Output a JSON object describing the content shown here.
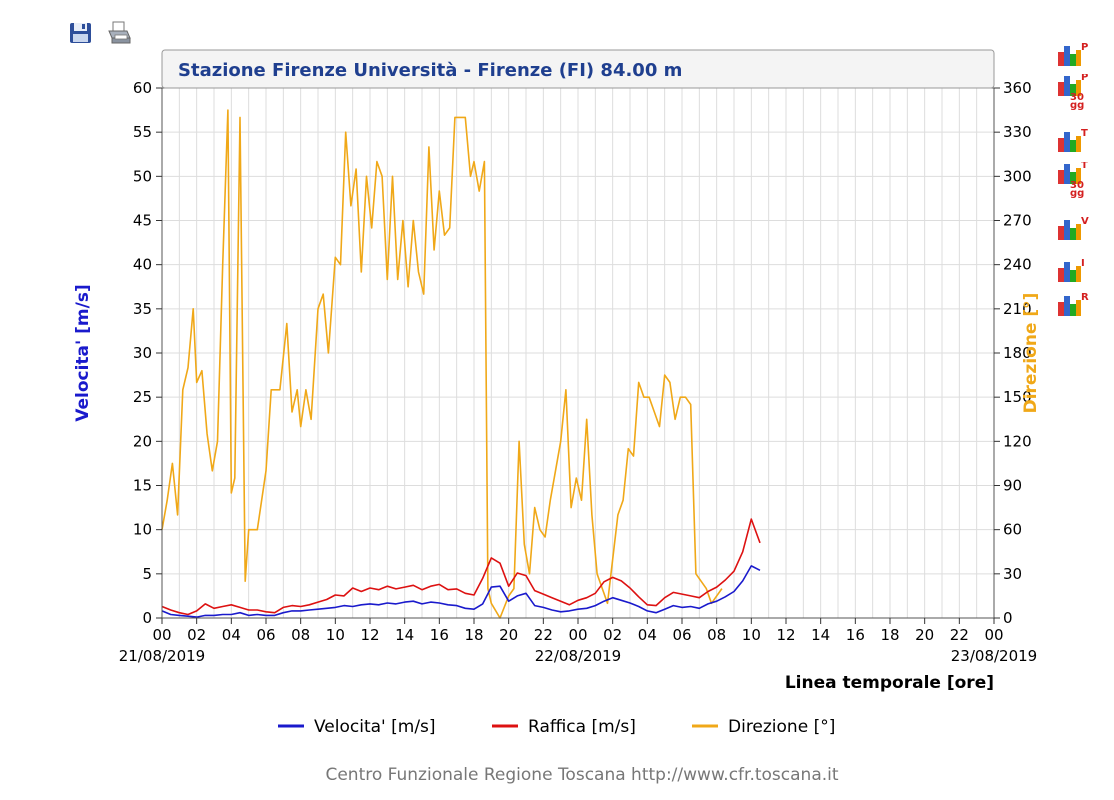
{
  "toolbar": {
    "save_icon": "floppy-disk-icon",
    "print_icon": "printer-icon"
  },
  "side_icons": [
    {
      "icon": "bar-chart-icon",
      "letter": "P",
      "sub": ""
    },
    {
      "icon": "bar-chart-icon",
      "letter": "P",
      "sub": "30\ngg"
    },
    {
      "icon": "bar-chart-icon",
      "letter": "T",
      "sub": ""
    },
    {
      "icon": "bar-chart-icon",
      "letter": "T",
      "sub": "30\ngg"
    },
    {
      "icon": "bar-chart-icon",
      "letter": "V",
      "sub": ""
    },
    {
      "icon": "bar-chart-icon",
      "letter": "I",
      "sub": ""
    },
    {
      "icon": "bar-chart-icon",
      "letter": "R",
      "sub": ""
    }
  ],
  "chart_data": {
    "type": "line",
    "title": "Stazione Firenze Università - Firenze (FI) 84.00 m",
    "xlabel": "Linea temporale [ore]",
    "ylabel_left": "Velocita' [m/s]",
    "ylabel_right": "Direzione [°]",
    "ylim_left": [
      0,
      60
    ],
    "ylim_right": [
      0,
      360
    ],
    "y_ticks_left": [
      "0",
      "5",
      "10",
      "15",
      "20",
      "25",
      "30",
      "35",
      "40",
      "45",
      "50",
      "55",
      "60"
    ],
    "y_ticks_right": [
      "0",
      "30",
      "60",
      "90",
      "120",
      "150",
      "180",
      "210",
      "240",
      "270",
      "300",
      "330",
      "360"
    ],
    "x_range_hours": [
      0,
      48
    ],
    "x_tick_labels": [
      "00",
      "02",
      "04",
      "06",
      "08",
      "10",
      "12",
      "14",
      "16",
      "18",
      "20",
      "22",
      "00",
      "02",
      "04",
      "06",
      "08",
      "10",
      "12",
      "14",
      "16",
      "18",
      "20",
      "22",
      "00"
    ],
    "date_labels": [
      {
        "hour": 0,
        "text": "21/08/2019"
      },
      {
        "hour": 24,
        "text": "22/08/2019"
      },
      {
        "hour": 48,
        "text": "23/08/2019"
      }
    ],
    "grid": true,
    "legend_position": "bottom",
    "footer": "Centro Funzionale Regione Toscana http://www.cfr.toscana.it",
    "series": [
      {
        "name": "Velocita' [m/s]",
        "axis": "left",
        "color": "#1a1acc",
        "points": [
          [
            0,
            0.8
          ],
          [
            0.5,
            0.4
          ],
          [
            1,
            0.3
          ],
          [
            1.5,
            0.2
          ],
          [
            2,
            0.1
          ],
          [
            2.5,
            0.3
          ],
          [
            3,
            0.3
          ],
          [
            3.5,
            0.4
          ],
          [
            4,
            0.4
          ],
          [
            4.5,
            0.6
          ],
          [
            5,
            0.3
          ],
          [
            5.5,
            0.4
          ],
          [
            6,
            0.3
          ],
          [
            6.5,
            0.3
          ],
          [
            7,
            0.6
          ],
          [
            7.5,
            0.8
          ],
          [
            8,
            0.8
          ],
          [
            8.5,
            0.9
          ],
          [
            9,
            1.0
          ],
          [
            9.5,
            1.1
          ],
          [
            10,
            1.2
          ],
          [
            10.5,
            1.4
          ],
          [
            11,
            1.3
          ],
          [
            11.5,
            1.5
          ],
          [
            12,
            1.6
          ],
          [
            12.5,
            1.5
          ],
          [
            13,
            1.7
          ],
          [
            13.5,
            1.6
          ],
          [
            14,
            1.8
          ],
          [
            14.5,
            1.9
          ],
          [
            15,
            1.6
          ],
          [
            15.5,
            1.8
          ],
          [
            16,
            1.7
          ],
          [
            16.5,
            1.5
          ],
          [
            17,
            1.4
          ],
          [
            17.5,
            1.1
          ],
          [
            18,
            1.0
          ],
          [
            18.5,
            1.6
          ],
          [
            19,
            3.5
          ],
          [
            19.5,
            3.6
          ],
          [
            20,
            1.9
          ],
          [
            20.5,
            2.5
          ],
          [
            21,
            2.8
          ],
          [
            21.5,
            1.4
          ],
          [
            22,
            1.2
          ],
          [
            22.5,
            0.9
          ],
          [
            23,
            0.7
          ],
          [
            23.5,
            0.8
          ],
          [
            24,
            1.0
          ],
          [
            24.5,
            1.1
          ],
          [
            25,
            1.4
          ],
          [
            25.5,
            1.9
          ],
          [
            26,
            2.3
          ],
          [
            26.5,
            2.0
          ],
          [
            27,
            1.7
          ],
          [
            27.5,
            1.3
          ],
          [
            28,
            0.8
          ],
          [
            28.5,
            0.6
          ],
          [
            29,
            1.0
          ],
          [
            29.5,
            1.4
          ],
          [
            30,
            1.2
          ],
          [
            30.5,
            1.3
          ],
          [
            31,
            1.1
          ],
          [
            31.5,
            1.6
          ],
          [
            32,
            1.9
          ],
          [
            32.5,
            2.4
          ],
          [
            33,
            3.0
          ],
          [
            33.5,
            4.2
          ],
          [
            34,
            5.9
          ],
          [
            34.5,
            5.4
          ]
        ]
      },
      {
        "name": "Raffica [m/s]",
        "axis": "left",
        "color": "#dd1111",
        "points": [
          [
            0,
            1.3
          ],
          [
            0.5,
            0.9
          ],
          [
            1,
            0.6
          ],
          [
            1.5,
            0.4
          ],
          [
            2,
            0.8
          ],
          [
            2.5,
            1.6
          ],
          [
            3,
            1.1
          ],
          [
            3.5,
            1.3
          ],
          [
            4,
            1.5
          ],
          [
            4.5,
            1.2
          ],
          [
            5,
            0.9
          ],
          [
            5.5,
            0.9
          ],
          [
            6,
            0.7
          ],
          [
            6.5,
            0.6
          ],
          [
            7,
            1.2
          ],
          [
            7.5,
            1.4
          ],
          [
            8,
            1.3
          ],
          [
            8.5,
            1.5
          ],
          [
            9,
            1.8
          ],
          [
            9.5,
            2.1
          ],
          [
            10,
            2.6
          ],
          [
            10.5,
            2.5
          ],
          [
            11,
            3.4
          ],
          [
            11.5,
            3.0
          ],
          [
            12,
            3.4
          ],
          [
            12.5,
            3.2
          ],
          [
            13,
            3.6
          ],
          [
            13.5,
            3.3
          ],
          [
            14,
            3.5
          ],
          [
            14.5,
            3.7
          ],
          [
            15,
            3.2
          ],
          [
            15.5,
            3.6
          ],
          [
            16,
            3.8
          ],
          [
            16.5,
            3.2
          ],
          [
            17,
            3.3
          ],
          [
            17.5,
            2.8
          ],
          [
            18,
            2.6
          ],
          [
            18.5,
            4.5
          ],
          [
            19,
            6.8
          ],
          [
            19.5,
            6.2
          ],
          [
            20,
            3.6
          ],
          [
            20.5,
            5.1
          ],
          [
            21,
            4.8
          ],
          [
            21.5,
            3.1
          ],
          [
            22,
            2.7
          ],
          [
            22.5,
            2.3
          ],
          [
            23,
            1.9
          ],
          [
            23.5,
            1.5
          ],
          [
            24,
            2.0
          ],
          [
            24.5,
            2.3
          ],
          [
            25,
            2.8
          ],
          [
            25.5,
            4.1
          ],
          [
            26,
            4.6
          ],
          [
            26.5,
            4.2
          ],
          [
            27,
            3.4
          ],
          [
            27.5,
            2.4
          ],
          [
            28,
            1.5
          ],
          [
            28.5,
            1.4
          ],
          [
            29,
            2.3
          ],
          [
            29.5,
            2.9
          ],
          [
            30,
            2.7
          ],
          [
            30.5,
            2.5
          ],
          [
            31,
            2.3
          ],
          [
            31.5,
            3.0
          ],
          [
            32,
            3.5
          ],
          [
            32.5,
            4.3
          ],
          [
            33,
            5.3
          ],
          [
            33.5,
            7.5
          ],
          [
            34,
            11.2
          ],
          [
            34.5,
            8.5
          ]
        ]
      },
      {
        "name": "Direzione [°]",
        "axis": "right",
        "color": "#f0a818",
        "points": [
          [
            0,
            60
          ],
          [
            0.3,
            80
          ],
          [
            0.6,
            105
          ],
          [
            0.9,
            70
          ],
          [
            1.2,
            155
          ],
          [
            1.5,
            170
          ],
          [
            1.8,
            210
          ],
          [
            2.0,
            160
          ],
          [
            2.3,
            168
          ],
          [
            2.6,
            125
          ],
          [
            2.9,
            100
          ],
          [
            3.2,
            120
          ],
          [
            3.5,
            240
          ],
          [
            3.8,
            345
          ],
          [
            4.0,
            85
          ],
          [
            4.2,
            95
          ],
          [
            4.5,
            340
          ],
          [
            4.8,
            25
          ],
          [
            5.0,
            60
          ],
          [
            5.5,
            60
          ],
          [
            6,
            100
          ],
          [
            6.3,
            155
          ],
          [
            6.8,
            155
          ],
          [
            7.2,
            200
          ],
          [
            7.5,
            140
          ],
          [
            7.8,
            155
          ],
          [
            8.0,
            130
          ],
          [
            8.3,
            155
          ],
          [
            8.6,
            135
          ],
          [
            9.0,
            210
          ],
          [
            9.3,
            220
          ],
          [
            9.6,
            180
          ],
          [
            10.0,
            245
          ],
          [
            10.3,
            240
          ],
          [
            10.6,
            330
          ],
          [
            10.9,
            280
          ],
          [
            11.2,
            305
          ],
          [
            11.5,
            235
          ],
          [
            11.8,
            300
          ],
          [
            12.1,
            265
          ],
          [
            12.4,
            310
          ],
          [
            12.7,
            300
          ],
          [
            13.0,
            230
          ],
          [
            13.3,
            300
          ],
          [
            13.6,
            230
          ],
          [
            13.9,
            270
          ],
          [
            14.2,
            225
          ],
          [
            14.5,
            270
          ],
          [
            14.8,
            235
          ],
          [
            15.1,
            220
          ],
          [
            15.4,
            320
          ],
          [
            15.7,
            250
          ],
          [
            16.0,
            290
          ],
          [
            16.3,
            260
          ],
          [
            16.6,
            265
          ],
          [
            16.9,
            340
          ],
          [
            17.2,
            340
          ],
          [
            17.5,
            340
          ],
          [
            17.8,
            300
          ],
          [
            18.0,
            310
          ],
          [
            18.3,
            290
          ],
          [
            18.6,
            310
          ],
          [
            18.8,
            20
          ],
          [
            19.0,
            10
          ],
          [
            19.5,
            0
          ],
          [
            20.0,
            15
          ],
          [
            20.3,
            20
          ],
          [
            20.6,
            120
          ],
          [
            20.9,
            50
          ],
          [
            21.2,
            30
          ],
          [
            21.5,
            75
          ],
          [
            21.8,
            60
          ],
          [
            22.1,
            55
          ],
          [
            22.4,
            80
          ],
          [
            22.7,
            100
          ],
          [
            23.0,
            120
          ],
          [
            23.3,
            155
          ],
          [
            23.6,
            75
          ],
          [
            23.9,
            95
          ],
          [
            24.2,
            80
          ],
          [
            24.5,
            135
          ],
          [
            24.8,
            70
          ],
          [
            25.1,
            30
          ],
          [
            25.4,
            20
          ],
          [
            25.7,
            10
          ],
          [
            26.0,
            40
          ],
          [
            26.3,
            70
          ],
          [
            26.6,
            80
          ],
          [
            26.9,
            115
          ],
          [
            27.2,
            110
          ],
          [
            27.5,
            160
          ],
          [
            27.8,
            150
          ],
          [
            28.1,
            150
          ],
          [
            28.4,
            140
          ],
          [
            28.7,
            130
          ],
          [
            29.0,
            165
          ],
          [
            29.3,
            160
          ],
          [
            29.6,
            135
          ],
          [
            29.9,
            150
          ],
          [
            30.2,
            150
          ],
          [
            30.5,
            145
          ],
          [
            30.8,
            30
          ],
          [
            31.1,
            25
          ],
          [
            31.4,
            20
          ],
          [
            31.7,
            10
          ],
          [
            32.0,
            15
          ],
          [
            32.3,
            20
          ]
        ]
      }
    ]
  }
}
